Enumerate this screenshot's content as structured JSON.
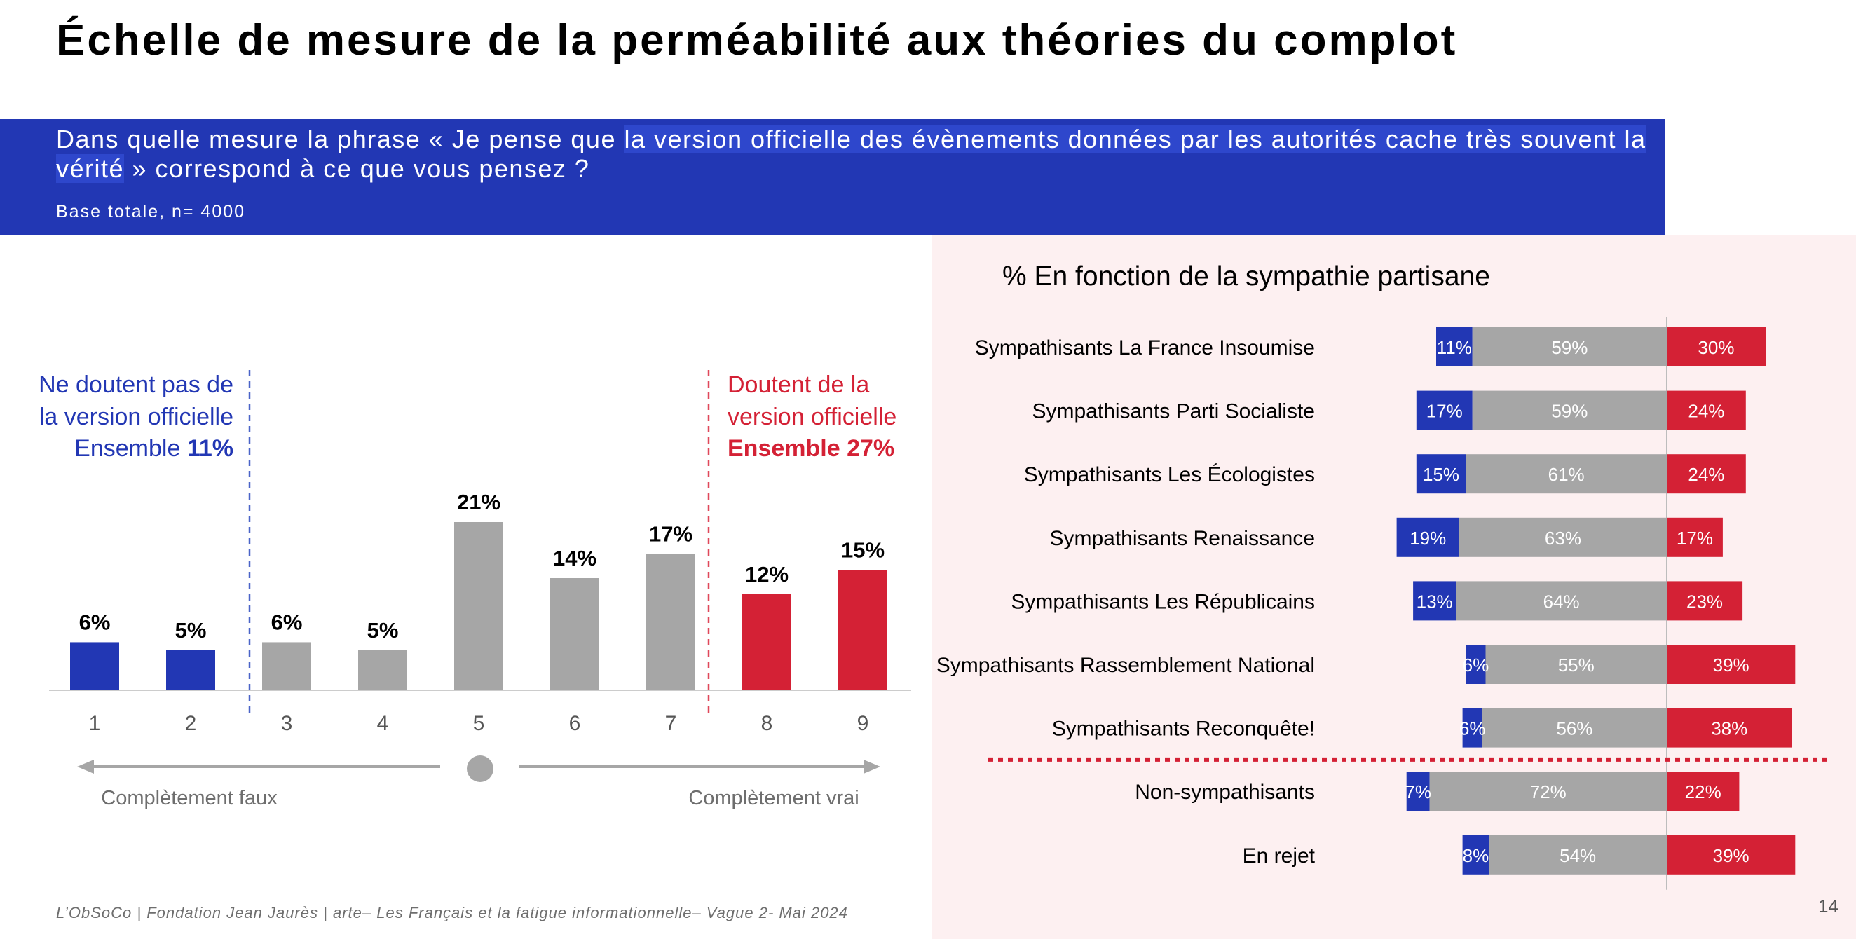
{
  "title": "Échelle de mesure de la perméabilité aux théories du complot",
  "question": {
    "part1": "Dans quelle mesure la phrase  « Je pense que ",
    "highlight": "la version officielle des évènements données par les autorités cache très souvent la vérité",
    "part2": " » correspond à ce que vous pensez ?",
    "base": "Base totale, n= 4000"
  },
  "footer": "L’ObSoCo | Fondation Jean Jaurès | arte– Les Français et la fatigue informationnelle– Vague 2- Mai 2024",
  "page_number": "14",
  "colors": {
    "blue": "#2237b4",
    "grey": "#a6a6a6",
    "red": "#d42135",
    "band": "#2237b4",
    "panel": "#fdf0f1"
  },
  "chart_data": [
    {
      "type": "bar",
      "categories": [
        "1",
        "2",
        "3",
        "4",
        "5",
        "6",
        "7",
        "8",
        "9"
      ],
      "values": [
        6,
        5,
        6,
        5,
        21,
        14,
        17,
        12,
        15
      ],
      "value_labels": [
        "6%",
        "5%",
        "6%",
        "5%",
        "21%",
        "14%",
        "17%",
        "12%",
        "15%"
      ],
      "bar_groups": [
        "blue",
        "blue",
        "grey",
        "grey",
        "grey",
        "grey",
        "grey",
        "red",
        "red"
      ],
      "ylim": [
        0,
        21
      ],
      "annotations": {
        "left_line1": "Ne doutent pas de",
        "left_line2": "la version officielle",
        "left_line3_a": "Ensemble ",
        "left_line3_b": "11%",
        "right_line1": "Doutent de la",
        "right_line2": "version officielle",
        "right_line3": "Ensemble 27%",
        "scale_left": "Complètement faux",
        "scale_right": "Complètement vrai"
      }
    },
    {
      "type": "bar",
      "orientation": "horizontal",
      "stacked": "diverging",
      "title": "% En fonction de la sympathie partisane",
      "categories": [
        "Sympathisants La France Insoumise",
        "Sympathisants Parti Socialiste",
        "Sympathisants Les Écologistes",
        "Sympathisants Renaissance",
        "Sympathisants Les Républicains",
        "Sympathisants Rassemblement National",
        "Sympathisants Reconquête!",
        "Non-sympathisants",
        "En rejet"
      ],
      "series": [
        {
          "color": "blue",
          "values": [
            11,
            17,
            15,
            19,
            13,
            6,
            6,
            7,
            8
          ],
          "labels": [
            "11%",
            "17%",
            "15%",
            "19%",
            "13%",
            "6%",
            "6%",
            "7%",
            "8%"
          ]
        },
        {
          "color": "grey",
          "values": [
            59,
            59,
            61,
            63,
            64,
            55,
            56,
            72,
            54
          ],
          "labels": [
            "59%",
            "59%",
            "61%",
            "63%",
            "64%",
            "55%",
            "56%",
            "72%",
            "54%"
          ]
        },
        {
          "color": "red",
          "values": [
            30,
            24,
            24,
            17,
            23,
            39,
            38,
            22,
            39
          ],
          "labels": [
            "30%",
            "24%",
            "24%",
            "17%",
            "23%",
            "39%",
            "38%",
            "22%",
            "39%"
          ]
        }
      ],
      "separator_after_index": 6
    }
  ]
}
